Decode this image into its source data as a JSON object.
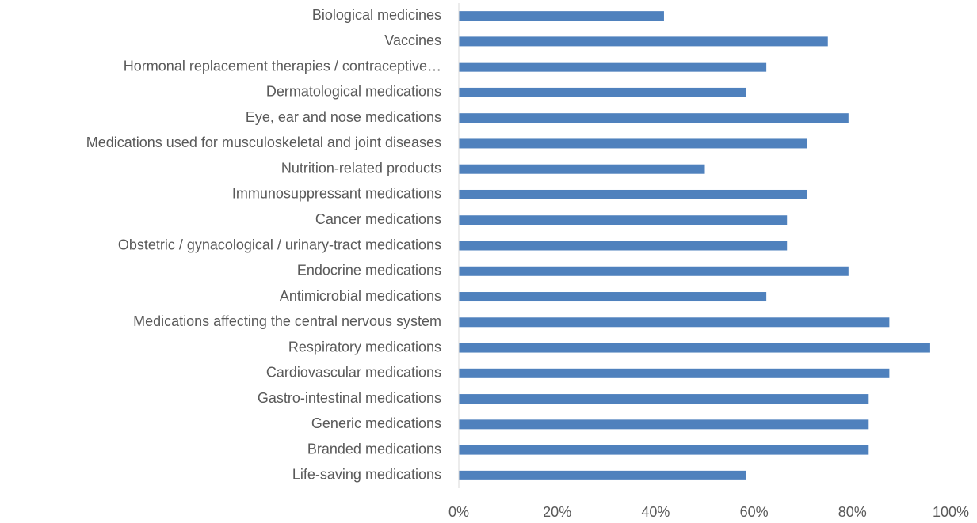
{
  "chart_data": {
    "type": "barh",
    "categories": [
      "Biological medicines",
      "Vaccines",
      "Hormonal replacement therapies / contraceptive…",
      "Dermatological medications",
      "Eye, ear and nose medications",
      "Medications used for musculoskeletal and joint diseases",
      "Nutrition-related products",
      "Immunosuppressant medications",
      "Cancer medications",
      "Obstetric / gynacological / urinary-tract medications",
      "Endocrine medications",
      "Antimicrobial medications",
      "Medications affecting the central nervous system",
      "Respiratory medications",
      "Cardiovascular medications",
      "Gastro-intestinal medications",
      "Generic medications",
      "Branded medications",
      "Life-saving medications"
    ],
    "values": [
      41.7,
      75,
      62.5,
      58.3,
      79.2,
      70.8,
      50,
      70.8,
      66.7,
      66.7,
      79.2,
      62.5,
      87.5,
      95.8,
      87.5,
      83.3,
      83.3,
      83.3,
      58.3
    ],
    "color": "#4f81bd",
    "xlim": [
      0,
      100
    ],
    "xticks": [
      {
        "value": 0,
        "label": "0%"
      },
      {
        "value": 20,
        "label": "20%"
      },
      {
        "value": 40,
        "label": "40%"
      },
      {
        "value": 60,
        "label": "60%"
      },
      {
        "value": 80,
        "label": "80%"
      },
      {
        "value": 100,
        "label": "100%"
      }
    ],
    "grid": false
  }
}
